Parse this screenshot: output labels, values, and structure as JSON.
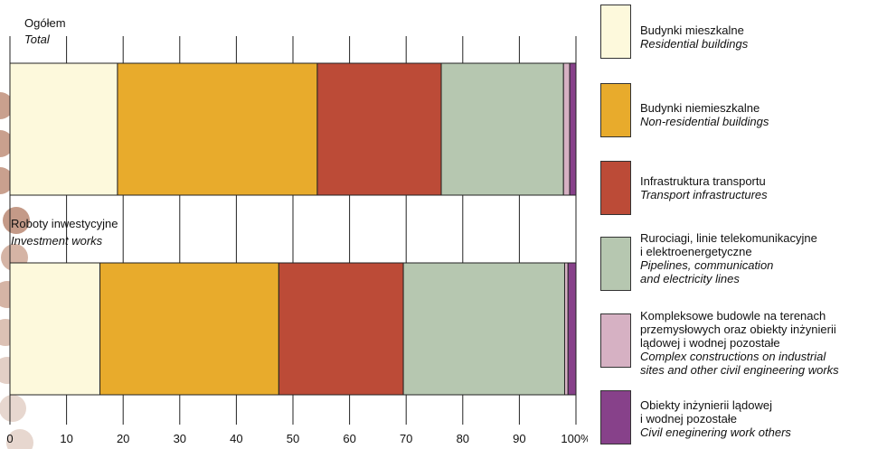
{
  "chart_data": {
    "type": "bar",
    "orientation": "horizontal",
    "stacked": true,
    "percent_scale": true,
    "categories": [
      {
        "pl": "Ogółem",
        "en": "Total"
      },
      {
        "pl": "Roboty inwestycyjne",
        "en": "Investment works"
      }
    ],
    "series": [
      {
        "name_pl": "Budynki mieszkalne",
        "name_en": "Residential buildings",
        "color": "#fdf9dc",
        "values": [
          19.0,
          15.9
        ]
      },
      {
        "name_pl": "Budynki niemieszkalne",
        "name_en": "Non-residential buildings",
        "color": "#e8ab2c",
        "values": [
          35.3,
          31.6
        ]
      },
      {
        "name_pl": "Infrastruktura transportu",
        "name_en": "Transport infrastructures",
        "color": "#bc4b37",
        "values": [
          21.9,
          22.0
        ]
      },
      {
        "name_pl": "Rurociagi, linie telekomunikacyjne\ni elektroenergetyczne",
        "name_en": "Pipelines, communication\nand electricity lines",
        "color": "#b6c7b0",
        "values": [
          21.6,
          28.5
        ]
      },
      {
        "name_pl": "Kompleksowe budowle na terenach\nprzemysłowych oraz obiekty inżynierii\nlądowej i wodnej pozostałe",
        "name_en": "Complex constructions on industrial\nsites and other civil engineering works",
        "color": "#d6b1c3",
        "values": [
          1.1,
          0.6
        ]
      },
      {
        "name_pl": "Obiekty inżynierii lądowej\ni wodnej pozostałe",
        "name_en": "Civil eneginering work others",
        "color": "#87418a",
        "values": [
          1.1,
          1.4
        ]
      }
    ],
    "x_ticks": [
      "0",
      "10",
      "20",
      "30",
      "40",
      "50",
      "60",
      "70",
      "80",
      "90",
      "100%"
    ],
    "xlim": [
      0,
      100
    ],
    "grid": true,
    "legend_position": "right"
  }
}
